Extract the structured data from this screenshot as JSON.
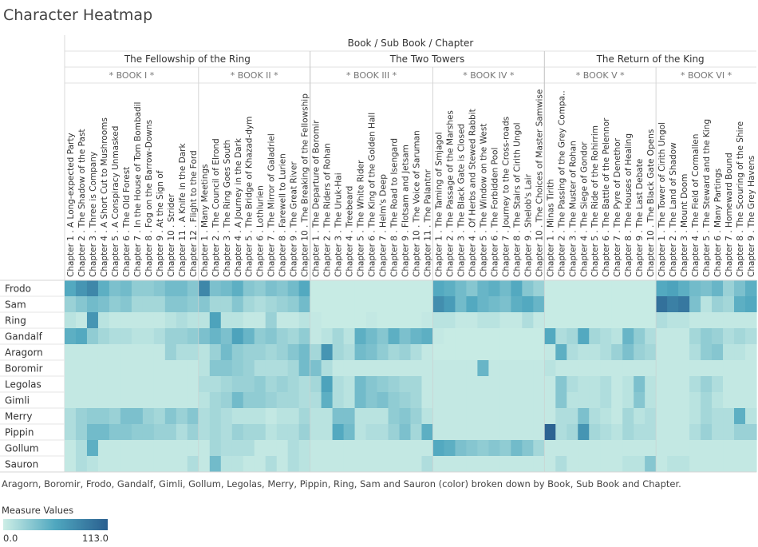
{
  "title": "Character Heatmap",
  "chart_data": {
    "type": "heatmap",
    "column_header": "Book / Sub Book / Chapter",
    "books": [
      {
        "name": "The Fellowship of the Ring",
        "sub_books": [
          {
            "name": "* BOOK I *",
            "chapters": [
              "Chapter 1 . A Long-expected Party",
              "Chapter 2 . The Shadow of the Past",
              "Chapter 3 . Three is Company",
              "Chapter 4 . A Short Cut to Mushrooms",
              "Chapter 5 . A Conspiracy Unmasked",
              "Chapter 6 . The Old Forest",
              "Chapter 7 . In the House of Tom Bombadil",
              "Chapter 8 . Fog on the Barrow-Downs",
              "Chapter 9 . At the Sign of",
              "Chapter 10 . Strider",
              "Chapter 11 . A Knife in the Dark",
              "Chapter 12 . Flight to the Ford"
            ]
          },
          {
            "name": "* BOOK II *",
            "chapters": [
              "Chapter 1 . Many Meetings",
              "Chapter 2 . The Council of Elrond",
              "Chapter 3 . The Ring Goes South",
              "Chapter 4 . A Journey in the Dark",
              "Chapter 5 . The Bridge of Khazad-dym",
              "Chapter 6 . Lothlurien",
              "Chapter 7 . The Mirror of Galadriel",
              "Chapter 8 . Farewell to Lurien",
              "Chapter 9 . The Great River",
              "Chapter 10 . The Breaking of the Fellowship"
            ]
          }
        ]
      },
      {
        "name": "The Two Towers",
        "sub_books": [
          {
            "name": "* BOOK III *",
            "chapters": [
              "Chapter 1 . The Departure of Boromir",
              "Chapter 2 . The Riders of Rohan",
              "Chapter 3 . The Uruk-Hai",
              "Chapter 4 . Treebeard",
              "Chapter 5 . The White Rider",
              "Chapter 6 . The King of the Golden Hall",
              "Chapter 7 . Helm's Deep",
              "Chapter 8 . The Road to Isengard",
              "Chapter 9 . Flotsam and Jetsam",
              "Chapter 10 . The Voice of Saruman",
              "Chapter 11 . The Palantnr"
            ]
          },
          {
            "name": "* BOOK IV *",
            "chapters": [
              "Chapter 1 . The Taming of Smjagol",
              "Chapter 2 . The Passage of the Marshes",
              "Chapter 3 . The Black Gate is Closed",
              "Chapter 4 . Of Herbs and Stewed Rabbit",
              "Chapter 5 . The Window on the West",
              "Chapter 6 . The Forbidden Pool",
              "Chapter 7 . Journey to the Cross-roads",
              "Chapter 8 . The Stairs of Cirith Ungol",
              "Chapter 9 . Shelob's Lair",
              "Chapter 10 . The Choices of Master Samwise"
            ]
          }
        ]
      },
      {
        "name": "The Return of the King",
        "sub_books": [
          {
            "name": "* BOOK V *",
            "chapters": [
              "Chapter 1 . Minas Tirith",
              "Chapter 2 . The Passing of the Grey Compa..",
              "Chapter 3 . The Muster of Rohan",
              "Chapter 4 . The Siege of Gondor",
              "Chapter 5 . The Ride of the Rohirrim",
              "Chapter 6 . The Battle of the Pelennor",
              "Chapter 7 . The Pyre of Denethor",
              "Chapter 8 . The Houses of Healing",
              "Chapter 9 . The Last Debate",
              "Chapter 10 . The Black Gate Opens"
            ]
          },
          {
            "name": "* BOOK VI *",
            "chapters": [
              "Chapter 1 . The Tower of Cirith Ungol",
              "Chapter 2 . The Land of Shadow",
              "Chapter 3 . Mount Doom",
              "Chapter 4 . The Field of Cormallen",
              "Chapter 5 . The Steward and the King",
              "Chapter 6 . Many Partings",
              "Chapter 7 . Homeward Bound",
              "Chapter 8 . The Scouring of the Shire",
              "Chapter 9 . The Grey Havens"
            ]
          }
        ]
      }
    ],
    "rows": [
      "Frodo",
      "Sam",
      "Ring",
      "Gandalf",
      "Aragorn",
      "Boromir",
      "Legolas",
      "Gimli",
      "Merry",
      "Pippin",
      "Gollum",
      "Sauron"
    ],
    "values": [
      [
        60,
        75,
        85,
        55,
        40,
        45,
        30,
        30,
        35,
        45,
        45,
        35,
        85,
        40,
        45,
        55,
        35,
        30,
        40,
        35,
        45,
        60,
        3,
        3,
        3,
        3,
        3,
        3,
        3,
        3,
        3,
        3,
        3,
        60,
        55,
        45,
        35,
        50,
        55,
        45,
        60,
        35,
        25,
        3,
        3,
        3,
        3,
        3,
        3,
        3,
        3,
        3,
        3,
        60,
        65,
        55,
        45,
        40,
        50,
        25,
        40,
        55
      ],
      [
        25,
        35,
        45,
        40,
        30,
        35,
        20,
        20,
        20,
        35,
        35,
        30,
        35,
        20,
        20,
        35,
        20,
        15,
        20,
        25,
        30,
        45,
        3,
        3,
        3,
        3,
        3,
        3,
        3,
        3,
        3,
        3,
        3,
        80,
        70,
        45,
        60,
        50,
        45,
        40,
        55,
        60,
        50,
        3,
        3,
        3,
        3,
        3,
        3,
        3,
        3,
        3,
        3,
        100,
        90,
        95,
        40,
        10,
        25,
        20,
        55,
        60
      ],
      [
        10,
        5,
        75,
        10,
        5,
        5,
        5,
        5,
        5,
        10,
        15,
        10,
        10,
        65,
        10,
        10,
        5,
        5,
        25,
        5,
        5,
        10,
        5,
        3,
        3,
        3,
        3,
        5,
        3,
        3,
        3,
        3,
        5,
        10,
        10,
        5,
        5,
        10,
        10,
        5,
        5,
        15,
        5,
        3,
        3,
        3,
        3,
        3,
        3,
        3,
        3,
        3,
        3,
        15,
        10,
        10,
        5,
        5,
        5,
        5,
        5,
        5
      ],
      [
        55,
        60,
        30,
        20,
        15,
        15,
        10,
        10,
        15,
        25,
        25,
        30,
        40,
        50,
        40,
        65,
        50,
        30,
        35,
        25,
        20,
        30,
        5,
        10,
        20,
        10,
        55,
        45,
        35,
        55,
        40,
        50,
        55,
        5,
        3,
        3,
        3,
        3,
        3,
        3,
        3,
        3,
        3,
        60,
        15,
        20,
        60,
        20,
        15,
        10,
        50,
        30,
        15,
        5,
        5,
        5,
        20,
        30,
        25,
        15,
        20,
        15
      ],
      [
        5,
        5,
        5,
        5,
        5,
        5,
        5,
        5,
        5,
        25,
        15,
        15,
        10,
        25,
        45,
        30,
        25,
        25,
        20,
        25,
        35,
        45,
        20,
        75,
        20,
        15,
        45,
        40,
        30,
        20,
        25,
        15,
        5,
        3,
        3,
        3,
        3,
        3,
        3,
        3,
        3,
        3,
        3,
        5,
        55,
        15,
        10,
        10,
        15,
        25,
        40,
        25,
        20,
        5,
        5,
        5,
        15,
        30,
        35,
        10,
        10,
        5
      ],
      [
        5,
        5,
        5,
        5,
        5,
        5,
        5,
        5,
        5,
        5,
        5,
        5,
        10,
        35,
        35,
        30,
        25,
        15,
        15,
        15,
        20,
        45,
        40,
        15,
        5,
        5,
        5,
        5,
        5,
        5,
        5,
        5,
        5,
        5,
        5,
        5,
        5,
        50,
        5,
        5,
        5,
        5,
        5,
        10,
        5,
        5,
        5,
        5,
        5,
        5,
        5,
        5,
        5,
        5,
        5,
        5,
        5,
        5,
        5,
        5,
        5,
        5
      ],
      [
        5,
        5,
        5,
        5,
        5,
        5,
        5,
        5,
        5,
        5,
        5,
        5,
        15,
        15,
        20,
        25,
        25,
        30,
        20,
        25,
        20,
        15,
        20,
        65,
        15,
        10,
        45,
        35,
        30,
        25,
        20,
        20,
        5,
        5,
        5,
        5,
        5,
        5,
        5,
        5,
        5,
        5,
        5,
        5,
        35,
        15,
        10,
        10,
        15,
        5,
        10,
        40,
        10,
        5,
        5,
        5,
        15,
        25,
        15,
        5,
        5,
        5
      ],
      [
        5,
        5,
        5,
        5,
        5,
        5,
        5,
        5,
        5,
        5,
        5,
        5,
        10,
        20,
        25,
        45,
        30,
        30,
        25,
        20,
        20,
        15,
        15,
        55,
        15,
        10,
        45,
        35,
        40,
        30,
        25,
        20,
        5,
        5,
        5,
        5,
        5,
        5,
        5,
        5,
        5,
        5,
        5,
        5,
        35,
        10,
        10,
        10,
        15,
        5,
        10,
        35,
        10,
        5,
        5,
        5,
        10,
        20,
        10,
        5,
        5,
        5
      ],
      [
        15,
        25,
        30,
        30,
        25,
        40,
        40,
        25,
        20,
        35,
        25,
        35,
        15,
        20,
        15,
        10,
        10,
        10,
        5,
        10,
        10,
        20,
        10,
        10,
        40,
        40,
        10,
        10,
        10,
        30,
        35,
        25,
        10,
        5,
        5,
        5,
        5,
        5,
        5,
        5,
        5,
        5,
        5,
        5,
        15,
        15,
        40,
        15,
        10,
        5,
        20,
        10,
        15,
        5,
        5,
        5,
        10,
        20,
        15,
        15,
        55,
        10
      ],
      [
        15,
        25,
        45,
        45,
        35,
        35,
        30,
        30,
        25,
        25,
        15,
        25,
        15,
        20,
        15,
        25,
        20,
        20,
        10,
        15,
        15,
        25,
        10,
        10,
        60,
        45,
        10,
        15,
        15,
        25,
        40,
        20,
        55,
        5,
        5,
        5,
        5,
        5,
        5,
        5,
        5,
        5,
        5,
        110,
        15,
        20,
        75,
        20,
        15,
        10,
        20,
        15,
        15,
        5,
        5,
        5,
        15,
        25,
        15,
        15,
        25,
        25
      ],
      [
        5,
        15,
        55,
        5,
        5,
        5,
        5,
        5,
        5,
        5,
        5,
        5,
        5,
        20,
        15,
        15,
        15,
        5,
        5,
        5,
        15,
        10,
        5,
        5,
        5,
        5,
        5,
        5,
        5,
        5,
        5,
        5,
        5,
        60,
        55,
        40,
        35,
        30,
        35,
        30,
        45,
        35,
        20,
        5,
        5,
        5,
        5,
        5,
        5,
        5,
        5,
        5,
        5,
        5,
        5,
        5,
        5,
        5,
        5,
        5,
        5,
        5
      ],
      [
        5,
        15,
        10,
        5,
        5,
        5,
        5,
        5,
        5,
        5,
        5,
        15,
        5,
        45,
        10,
        10,
        5,
        5,
        15,
        5,
        15,
        10,
        5,
        5,
        5,
        5,
        5,
        5,
        5,
        5,
        5,
        5,
        15,
        5,
        5,
        5,
        5,
        5,
        5,
        5,
        5,
        5,
        5,
        5,
        15,
        5,
        5,
        5,
        5,
        5,
        10,
        10,
        35,
        5,
        10,
        10,
        5,
        5,
        5,
        5,
        5,
        5
      ]
    ],
    "color_min": "#cdeee6",
    "color_mid": "#4fa7bf",
    "color_max": "#2a5f8f",
    "range": [
      0.0,
      113.0
    ]
  },
  "caption": "Aragorn, Boromir, Frodo, Gandalf, Gimli, Gollum, Legolas, Merry, Pippin, Ring, Sam and Sauron (color) broken down by Book, Sub Book and Chapter.",
  "legend": {
    "title": "Measure Values",
    "min_label": "0.0",
    "max_label": "113.0"
  }
}
